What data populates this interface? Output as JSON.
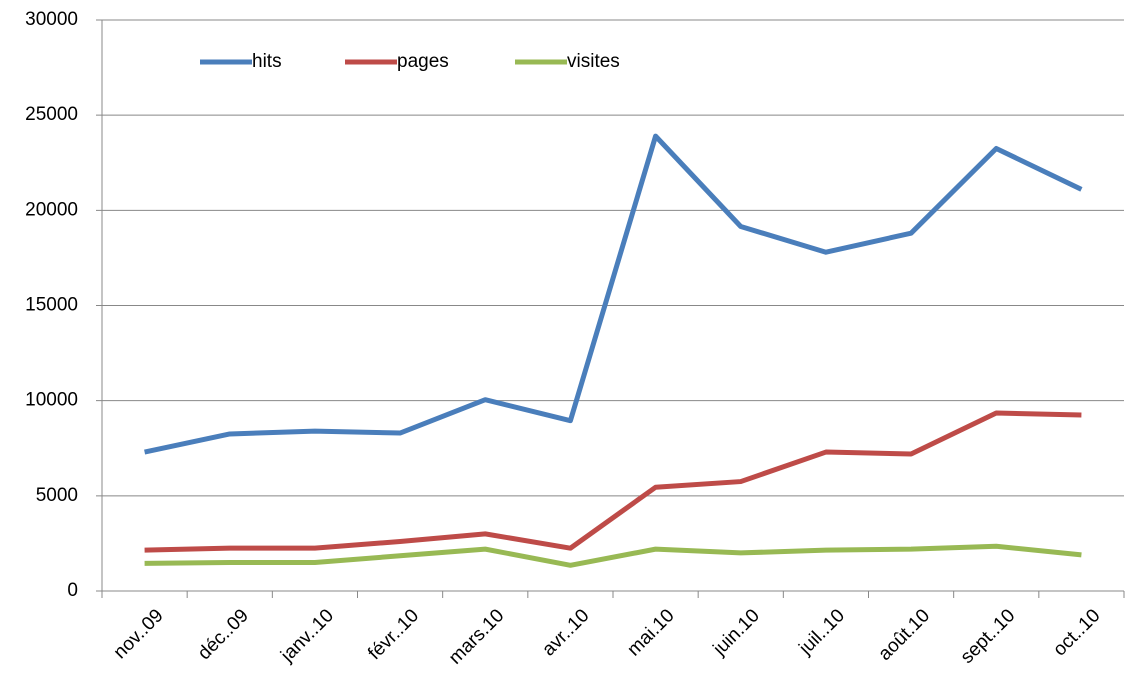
{
  "chart_data": {
    "type": "line",
    "categories": [
      "nov..09",
      "déc..09",
      "janv..10",
      "févr..10",
      "mars.10",
      "avr..10",
      "mai.10",
      "juin.10",
      "juil..10",
      "août.10",
      "sept..10",
      "oct..10"
    ],
    "series": [
      {
        "name": "hits",
        "color": "#4a7ebb",
        "values": [
          7300,
          8250,
          8400,
          8300,
          10050,
          8950,
          23900,
          19150,
          17800,
          18800,
          23250,
          21100
        ]
      },
      {
        "name": "pages",
        "color": "#be4b48",
        "values": [
          2150,
          2250,
          2250,
          2600,
          3000,
          2250,
          5450,
          5750,
          7300,
          7200,
          9350,
          9250
        ]
      },
      {
        "name": "visites",
        "color": "#98b954",
        "values": [
          1450,
          1500,
          1500,
          1850,
          2200,
          1350,
          2200,
          2000,
          2150,
          2200,
          2350,
          1900
        ]
      }
    ],
    "ylim": [
      0,
      30000
    ],
    "yticks": [
      0,
      5000,
      10000,
      15000,
      20000,
      25000,
      30000
    ],
    "grid": true,
    "legend": "top-left"
  }
}
